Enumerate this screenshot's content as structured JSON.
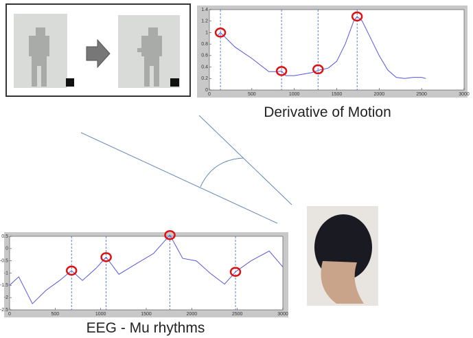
{
  "chart_data": [
    {
      "type": "line",
      "title": "Derivative of Motion",
      "color": "#5555dd",
      "event_color": "#dd1111",
      "x": [
        100,
        130,
        300,
        500,
        700,
        800,
        850,
        900,
        1000,
        1200,
        1300,
        1400,
        1500,
        1600,
        1700,
        1740,
        1800,
        1900,
        2000,
        2100,
        2200,
        2300,
        2400,
        2500,
        2550
      ],
      "values": [
        0.95,
        1.0,
        0.75,
        0.55,
        0.32,
        0.32,
        0.33,
        0.25,
        0.25,
        0.3,
        0.35,
        0.38,
        0.5,
        0.8,
        1.2,
        1.28,
        1.2,
        0.9,
        0.6,
        0.35,
        0.22,
        0.2,
        0.22,
        0.22,
        0.2
      ],
      "events": {
        "x": [
          130,
          850,
          1280,
          1740
        ],
        "values": [
          1.0,
          0.33,
          0.36,
          1.28
        ]
      },
      "xlim": [
        0,
        3000
      ],
      "ylim": [
        0,
        1.4
      ],
      "xticks": [
        0,
        500,
        1000,
        1500,
        2000,
        2500,
        3000
      ],
      "yticks": [
        0,
        0.2,
        0.4,
        0.6,
        0.8,
        1,
        1.2,
        1.4
      ]
    },
    {
      "type": "line",
      "title": "EEG - Mu rhythms",
      "color": "#5555dd",
      "event_color": "#dd1111",
      "x": [
        0,
        100,
        250,
        400,
        550,
        680,
        800,
        950,
        1060,
        1200,
        1400,
        1580,
        1760,
        1900,
        2050,
        2200,
        2360,
        2480,
        2650,
        2850,
        3000
      ],
      "values": [
        -1.5,
        -1.15,
        -2.25,
        -1.7,
        -1.3,
        -0.9,
        -1.3,
        -0.8,
        -0.35,
        -1.05,
        -0.6,
        -0.2,
        0.55,
        -0.4,
        -0.5,
        -1.0,
        -1.45,
        -0.95,
        -0.5,
        -0.1,
        -0.75
      ],
      "events": {
        "x": [
          680,
          1060,
          1760,
          2480
        ],
        "values": [
          -0.9,
          -0.35,
          0.55,
          -0.95
        ]
      },
      "xlim": [
        0,
        3000
      ],
      "ylim": [
        -2.5,
        0.5
      ],
      "xticks": [
        0,
        500,
        1000,
        1500,
        2000,
        2500,
        3000
      ],
      "yticks": [
        -2.5,
        -2,
        -1.5,
        -1,
        -0.5,
        0,
        0.5
      ]
    }
  ]
}
